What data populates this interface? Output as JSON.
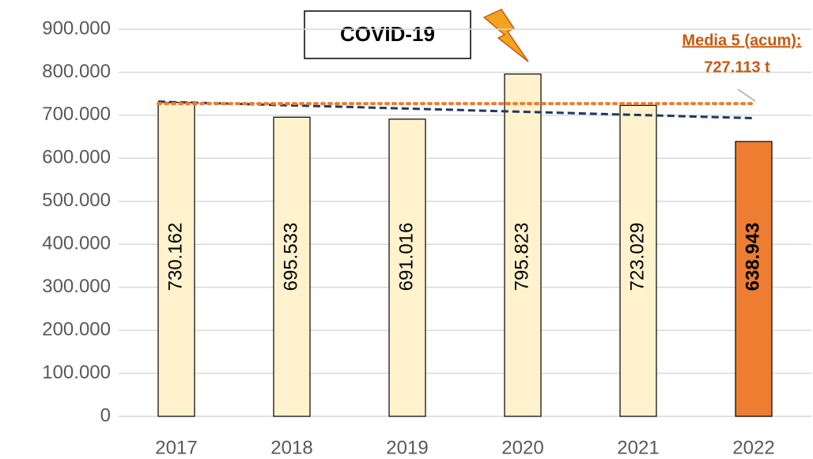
{
  "chart_data": {
    "type": "bar",
    "categories": [
      "2017",
      "2018",
      "2019",
      "2020",
      "2021",
      "2022"
    ],
    "values": [
      730162,
      695533,
      691016,
      795823,
      723029,
      638943
    ],
    "value_labels": [
      "730.162",
      "695.533",
      "691.016",
      "795.823",
      "723.029",
      "638.943"
    ],
    "colors": [
      "#fff2cc",
      "#fff2cc",
      "#fff2cc",
      "#fff2cc",
      "#fff2cc",
      "#ed7d31"
    ],
    "ylim": [
      0,
      900000
    ],
    "yticks": [
      0,
      {
        "value": 100000,
        "label": "100.000"
      },
      {
        "value": 200000,
        "label": "200.000"
      },
      {
        "value": 300000,
        "label": "300.000"
      },
      {
        "value": 400000,
        "label": "400.000"
      },
      {
        "value": 500000,
        "label": "500.000"
      },
      {
        "value": 600000,
        "label": "600.000"
      },
      {
        "value": 700000,
        "label": "700.000"
      },
      {
        "value": 800000,
        "label": "800.000"
      },
      {
        "value": 900000,
        "label": "900.000"
      }
    ],
    "grid": true,
    "trendline": {
      "values": [
        731600,
        693200
      ],
      "color": "#1f3864"
    },
    "average": {
      "label": "Media 5 (acum):",
      "value": 727113,
      "value_label": "727.113 t",
      "color": "#ed7d31"
    },
    "annotation": "COVID-19"
  }
}
